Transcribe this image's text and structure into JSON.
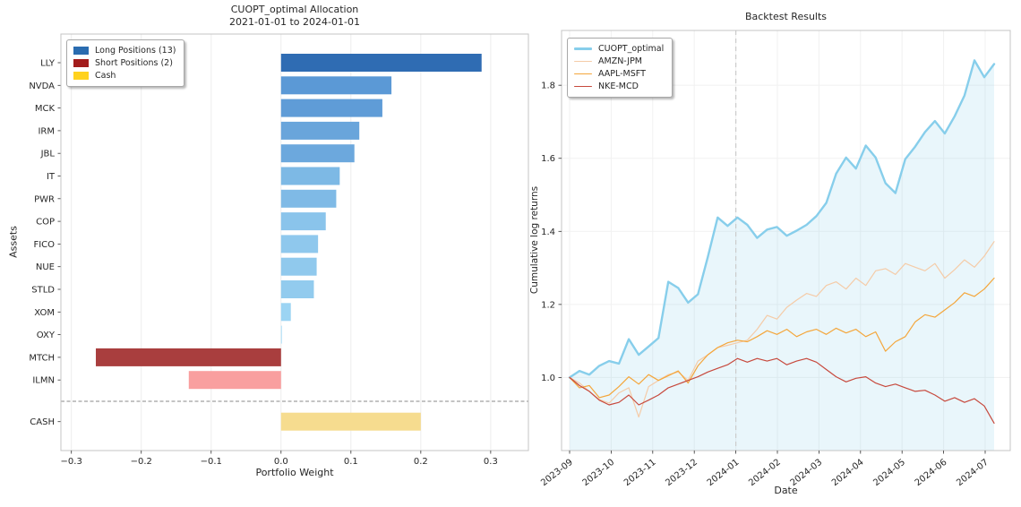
{
  "figure": {
    "background": "#ffffff"
  },
  "chart_data": [
    {
      "type": "bar",
      "orientation": "horizontal",
      "title_line1": "CUOPT_optimal Allocation",
      "title_line2": "2021-01-01 to 2024-01-01",
      "xlabel": "Portfolio Weight",
      "ylabel": "Assets",
      "categories": [
        "LLY",
        "NVDA",
        "MCK",
        "IRM",
        "JBL",
        "IT",
        "PWR",
        "COP",
        "FICO",
        "NUE",
        "STLD",
        "XOM",
        "OXY",
        "MTCH",
        "ILMN",
        "CASH"
      ],
      "values": [
        0.287,
        0.158,
        0.145,
        0.112,
        0.105,
        0.084,
        0.079,
        0.064,
        0.053,
        0.051,
        0.047,
        0.014,
        0.001,
        -0.265,
        -0.132,
        0.2
      ],
      "bar_colors": [
        "#2f6cb3",
        "#5b99d6",
        "#5f9cd7",
        "#69a5db",
        "#6ca8dd",
        "#7db9e5",
        "#7fbae6",
        "#8ac4eb",
        "#8fc8ed",
        "#90c9ed",
        "#92cbee",
        "#9cd4f3",
        "#a5daf6",
        "#a93e3e",
        "#f99f9f",
        "#f6dc8f"
      ],
      "x_tick_values": [
        -0.3,
        -0.2,
        -0.1,
        0.0,
        0.1,
        0.2,
        0.3
      ],
      "x_tick_labels": [
        "−0.3",
        "−0.2",
        "−0.1",
        "0.0",
        "0.1",
        "0.2",
        "0.3"
      ],
      "xlim": [
        -0.315,
        0.354
      ],
      "separator_after_index": 14,
      "grid": true,
      "legend": [
        {
          "label": "Long Positions (13)",
          "color": "#2a6cb0"
        },
        {
          "label": "Short Positions (2)",
          "color": "#a21c1c"
        },
        {
          "label": "Cash",
          "color": "#ffd21f"
        }
      ]
    },
    {
      "type": "line",
      "title": "Backtest Results",
      "xlabel": "Date",
      "ylabel": "Cumulative log returns",
      "x_tick_labels": [
        "2023-09",
        "2023-10",
        "2023-11",
        "2023-12",
        "2024-01",
        "2024-02",
        "2024-03",
        "2024-04",
        "2024-05",
        "2024-06",
        "2024-07"
      ],
      "y_tick_values": [
        1.0,
        1.2,
        1.4,
        1.6,
        1.8
      ],
      "y_tick_labels": [
        "1.0",
        "1.2",
        "1.4",
        "1.6",
        "1.8"
      ],
      "ylim": [
        0.8,
        1.95
      ],
      "grid": true,
      "legend_position": "upper-left",
      "vline_month_index": 4,
      "vline_label": "2024-01",
      "series": [
        {
          "name": "CUOPT_optimal",
          "color": "#87ceeb",
          "width": 2.4,
          "fill": true,
          "fill_color": "rgba(135,206,235,0.18)",
          "values": [
            1.0,
            1.018,
            1.008,
            1.032,
            1.045,
            1.038,
            1.105,
            1.062,
            1.085,
            1.108,
            1.262,
            1.245,
            1.205,
            1.228,
            1.33,
            1.438,
            1.415,
            1.438,
            1.418,
            1.382,
            1.405,
            1.412,
            1.388,
            1.402,
            1.418,
            1.442,
            1.478,
            1.558,
            1.602,
            1.572,
            1.635,
            1.602,
            1.532,
            1.505,
            1.598,
            1.632,
            1.672,
            1.702,
            1.668,
            1.715,
            1.772,
            1.868,
            1.822,
            1.858
          ]
        },
        {
          "name": "AMZN-JPM",
          "color": "#f5cba7",
          "width": 1.2,
          "fill": false,
          "values": [
            1.0,
            0.985,
            0.962,
            0.94,
            0.93,
            0.958,
            0.972,
            0.892,
            0.975,
            0.992,
            1.008,
            1.015,
            0.992,
            1.045,
            1.062,
            1.082,
            1.088,
            1.095,
            1.102,
            1.132,
            1.17,
            1.16,
            1.192,
            1.212,
            1.23,
            1.222,
            1.252,
            1.262,
            1.242,
            1.272,
            1.252,
            1.292,
            1.298,
            1.282,
            1.312,
            1.302,
            1.292,
            1.312,
            1.272,
            1.295,
            1.322,
            1.302,
            1.332,
            1.372
          ]
        },
        {
          "name": "AAPL-MSFT",
          "color": "#f4a63b",
          "width": 1.2,
          "fill": false,
          "values": [
            1.0,
            0.972,
            0.978,
            0.945,
            0.952,
            0.975,
            1.002,
            0.982,
            1.008,
            0.992,
            1.005,
            1.018,
            0.985,
            1.032,
            1.062,
            1.082,
            1.095,
            1.102,
            1.098,
            1.112,
            1.128,
            1.118,
            1.132,
            1.112,
            1.125,
            1.132,
            1.118,
            1.135,
            1.122,
            1.132,
            1.112,
            1.125,
            1.072,
            1.098,
            1.112,
            1.152,
            1.172,
            1.165,
            1.185,
            1.205,
            1.232,
            1.222,
            1.242,
            1.272
          ]
        },
        {
          "name": "NKE-MCD",
          "color": "#c7493d",
          "width": 1.2,
          "fill": false,
          "values": [
            1.0,
            0.978,
            0.962,
            0.938,
            0.925,
            0.932,
            0.952,
            0.925,
            0.938,
            0.952,
            0.972,
            0.982,
            0.992,
            1.002,
            1.015,
            1.025,
            1.035,
            1.052,
            1.042,
            1.052,
            1.045,
            1.052,
            1.035,
            1.045,
            1.052,
            1.042,
            1.022,
            1.002,
            0.988,
            0.998,
            1.002,
            0.985,
            0.975,
            0.982,
            0.972,
            0.962,
            0.965,
            0.952,
            0.935,
            0.945,
            0.932,
            0.942,
            0.922,
            0.875
          ]
        }
      ]
    }
  ]
}
